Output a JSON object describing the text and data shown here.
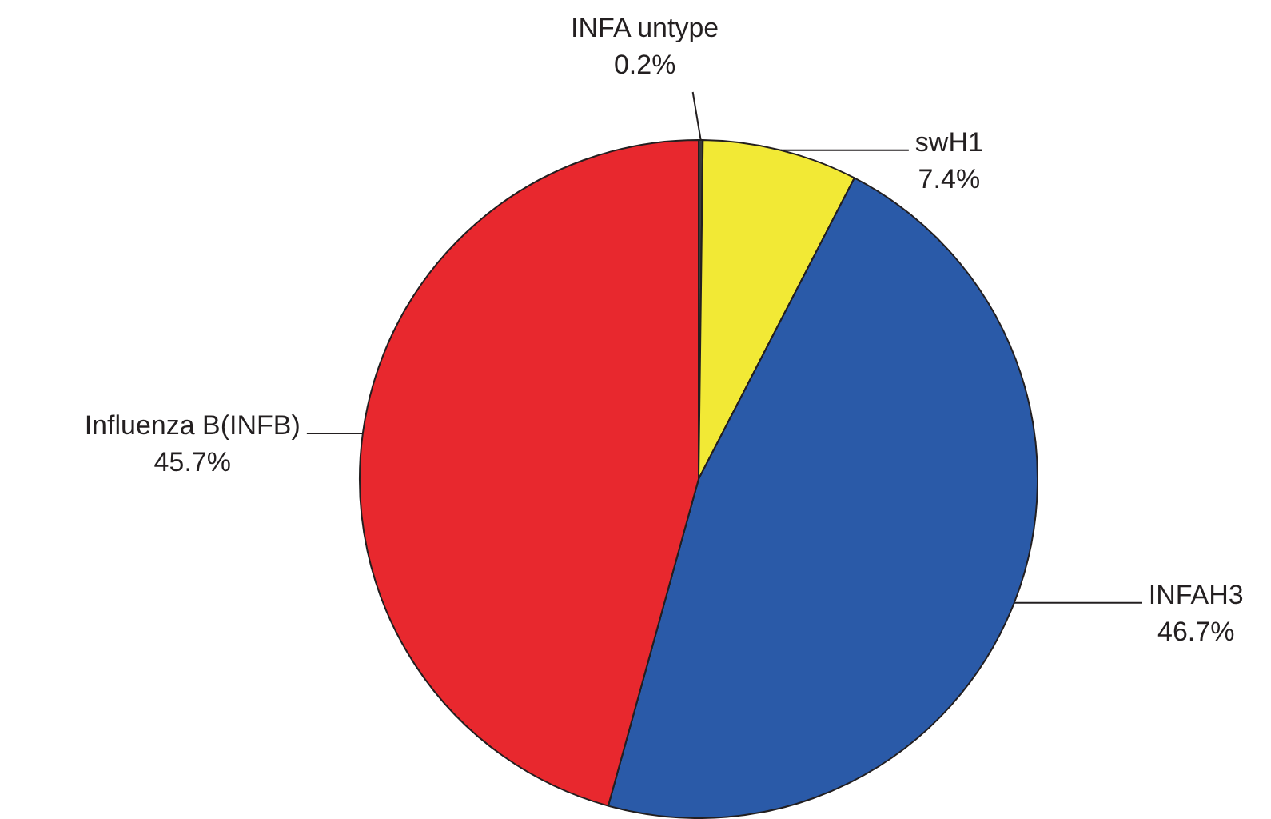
{
  "chart_data": {
    "type": "pie",
    "categories": [
      "INFA untype",
      "swH1",
      "INFAH3",
      "Influenza B(INFB)"
    ],
    "values": [
      0.2,
      7.4,
      46.7,
      45.7
    ],
    "value_labels": [
      "0.2%",
      "7.4%",
      "46.7%",
      "45.7%"
    ],
    "colors": [
      "#3a3a3a",
      "#f2e935",
      "#2a5aa8",
      "#e8282e"
    ],
    "legend": false
  }
}
